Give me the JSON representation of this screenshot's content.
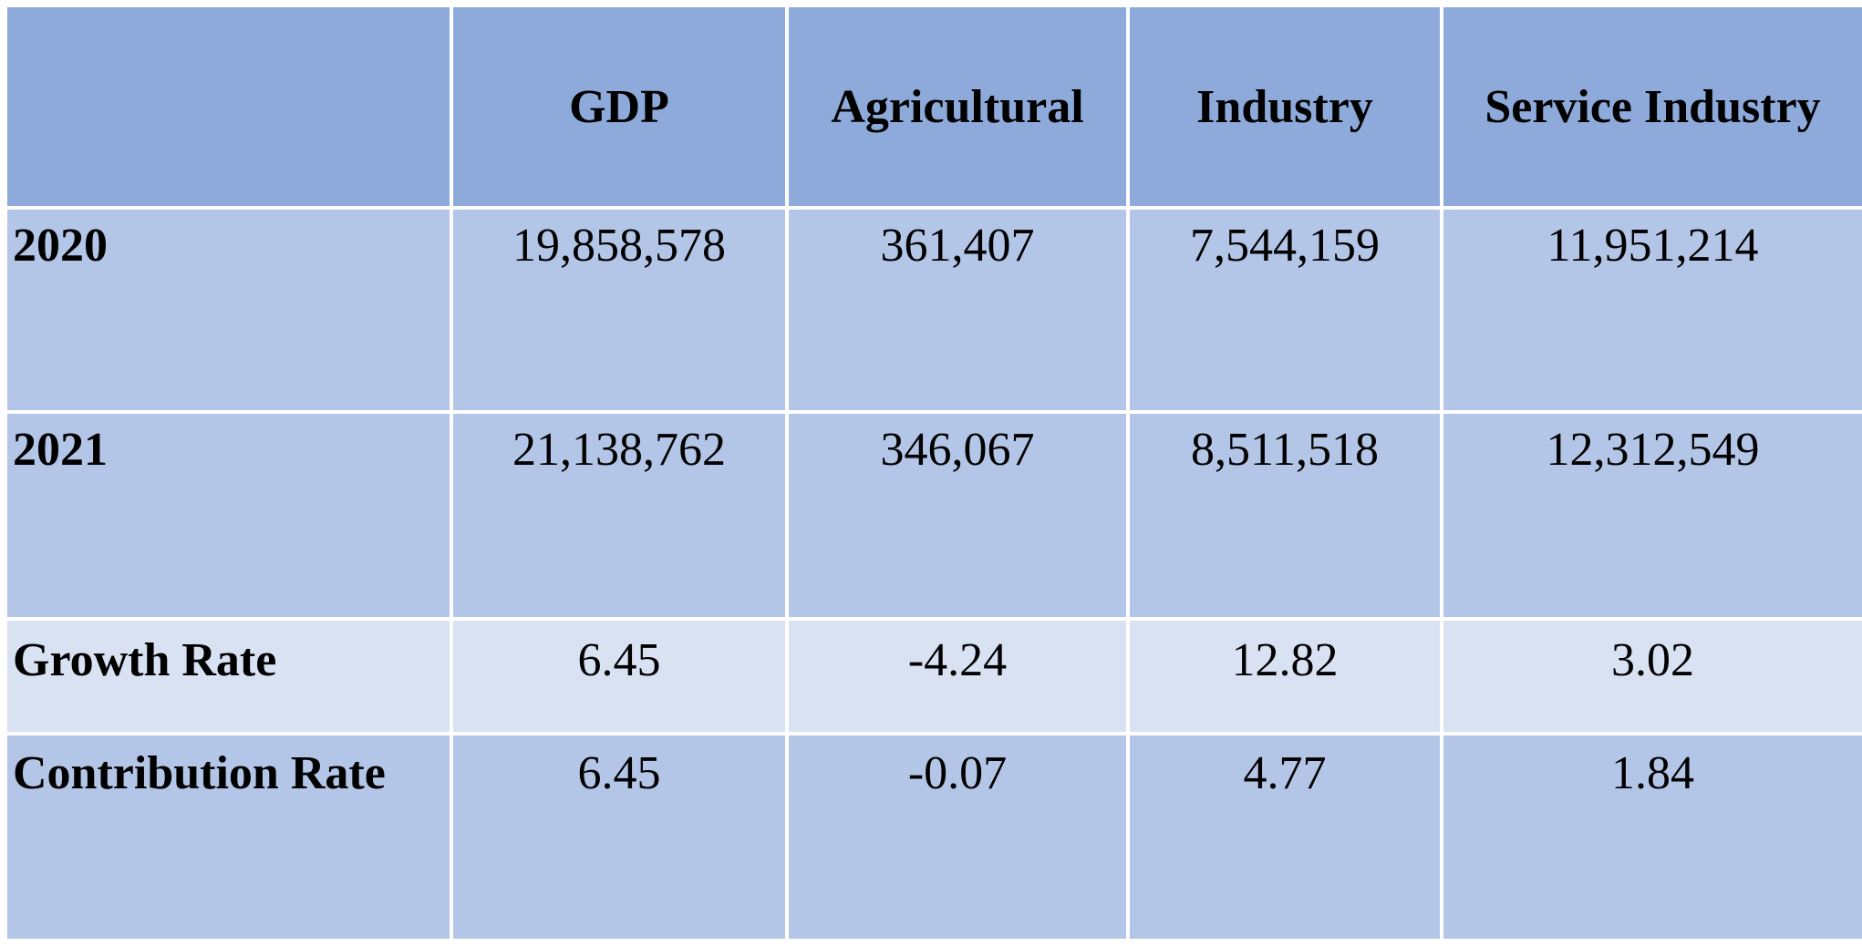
{
  "table": {
    "header": {
      "corner": "",
      "columns": [
        "GDP",
        "Agricultural",
        "Industry",
        "Service Industry"
      ]
    },
    "rows": [
      {
        "label": "2020",
        "values": [
          "19,858,578",
          "361,407",
          "7,544,159",
          "11,951,214"
        ]
      },
      {
        "label": "2021",
        "values": [
          "21,138,762",
          "346,067",
          "8,511,518",
          "12,312,549"
        ]
      },
      {
        "label": "Growth Rate",
        "values": [
          "6.45",
          "-4.24",
          "12.82",
          "3.02"
        ]
      },
      {
        "label": "Contribution Rate",
        "values": [
          "6.45",
          "-0.07",
          "4.77",
          "1.84"
        ]
      }
    ]
  },
  "colors": {
    "header_bg": "#8eaadb",
    "row_dark_bg": "#b4c6e7",
    "row_light_bg": "#d9e2f3",
    "grid_line": "#ffffff"
  }
}
